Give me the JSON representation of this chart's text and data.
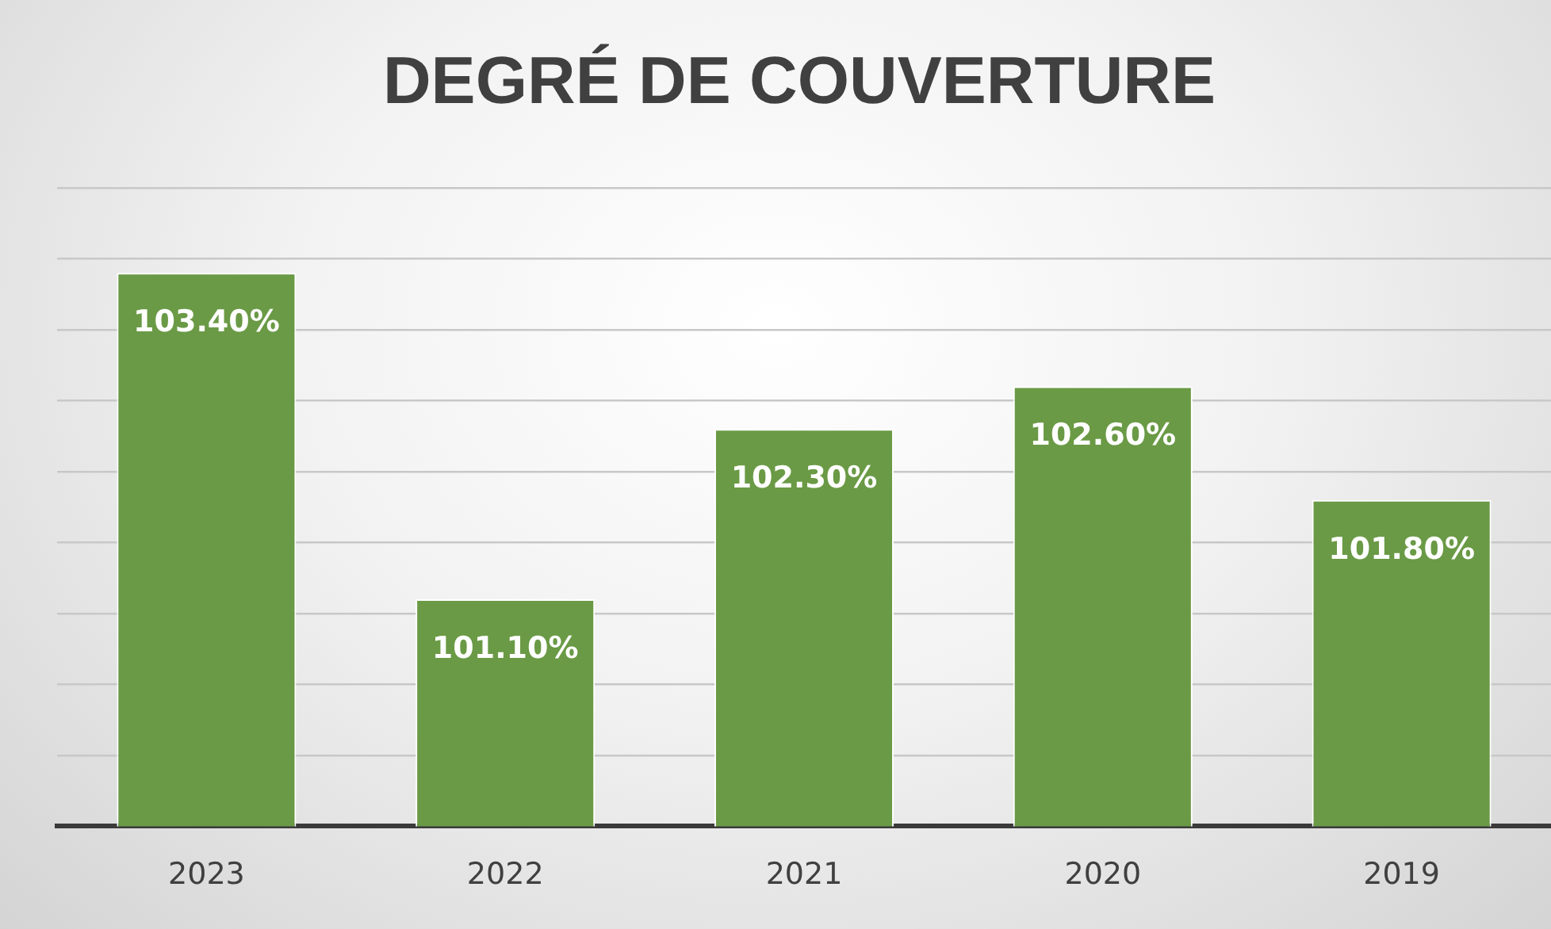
{
  "chart_data": {
    "type": "bar",
    "title": "DEGRÉ DE COUVERTURE",
    "categories": [
      "2023",
      "2022",
      "2021",
      "2020",
      "2019"
    ],
    "values": [
      103.4,
      101.1,
      102.3,
      102.6,
      101.8
    ],
    "value_labels": [
      "103.40%",
      "101.10%",
      "102.30%",
      "102.60%",
      "101.80%"
    ],
    "color": "#6a9a45",
    "ylim": [
      99.5,
      104
    ],
    "yticks": [
      {
        "value": 99.5,
        "label": null
      },
      {
        "value": 100,
        "label": null
      },
      {
        "value": 100.5,
        "label": null
      },
      {
        "value": 101,
        "label": null
      },
      {
        "value": 101.5,
        "label": null
      },
      {
        "value": 102,
        "label": null
      },
      {
        "value": 102.5,
        "label": null
      },
      {
        "value": 103,
        "label": null
      },
      {
        "value": 103.5,
        "label": null
      },
      {
        "value": 104,
        "label": null
      }
    ],
    "grid": "y"
  }
}
